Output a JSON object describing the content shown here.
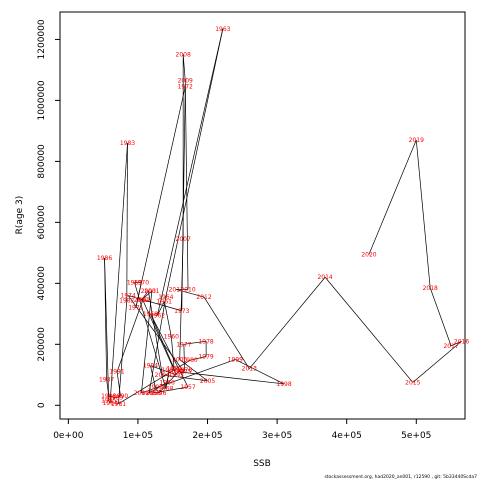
{
  "chart_data": {
    "type": "line",
    "xlabel": "SSB",
    "ylabel": "R(age 3)",
    "xlim": [
      -12000,
      570000
    ],
    "ylim": [
      -45000,
      1290000
    ],
    "x_ticks": [
      0,
      100000,
      200000,
      300000,
      400000,
      500000
    ],
    "x_tick_labels": [
      "0e+00",
      "1e+05",
      "2e+05",
      "3e+05",
      "4e+05",
      "5e+05"
    ],
    "y_ticks": [
      0,
      200000,
      400000,
      600000,
      800000,
      1000000,
      1200000
    ],
    "y_tick_labels": [
      "0",
      "200000",
      "400000",
      "600000",
      "800000",
      "1000000",
      "1200000"
    ],
    "grid": false,
    "line_color": "#000000",
    "label_color": "#ff0000",
    "points": [
      {
        "year": "1956",
        "x": 122000,
        "y": 40000
      },
      {
        "year": "1957",
        "x": 172000,
        "y": 60000
      },
      {
        "year": "1958",
        "x": 118000,
        "y": 300000
      },
      {
        "year": "1959",
        "x": 152000,
        "y": 120000
      },
      {
        "year": "1960",
        "x": 148000,
        "y": 225000
      },
      {
        "year": "1961",
        "x": 138000,
        "y": 340000
      },
      {
        "year": "1962",
        "x": 128000,
        "y": 295000
      },
      {
        "year": "1963",
        "x": 222000,
        "y": 1235000
      },
      {
        "year": "1964",
        "x": 140000,
        "y": 355000
      },
      {
        "year": "1965",
        "x": 116000,
        "y": 40000
      },
      {
        "year": "1966",
        "x": 142000,
        "y": 75000
      },
      {
        "year": "1967",
        "x": 145000,
        "y": 115000
      },
      {
        "year": "1968",
        "x": 140000,
        "y": 55000
      },
      {
        "year": "1969",
        "x": 95000,
        "y": 403000
      },
      {
        "year": "1970",
        "x": 105000,
        "y": 403000
      },
      {
        "year": "1971",
        "x": 97000,
        "y": 320000
      },
      {
        "year": "1972",
        "x": 168000,
        "y": 1045000
      },
      {
        "year": "1973",
        "x": 163000,
        "y": 310000
      },
      {
        "year": "1974",
        "x": 86000,
        "y": 360000
      },
      {
        "year": "1975",
        "x": 166000,
        "y": 110000
      },
      {
        "year": "1976",
        "x": 167000,
        "y": 115000
      },
      {
        "year": "1977",
        "x": 166000,
        "y": 200000
      },
      {
        "year": "1978",
        "x": 198000,
        "y": 210000
      },
      {
        "year": "1979",
        "x": 198000,
        "y": 160000
      },
      {
        "year": "1980",
        "x": 175000,
        "y": 148000
      },
      {
        "year": "1981",
        "x": 72000,
        "y": 5000
      },
      {
        "year": "1982",
        "x": 84000,
        "y": 343000
      },
      {
        "year": "1983",
        "x": 85000,
        "y": 860000
      },
      {
        "year": "1984",
        "x": 60000,
        "y": 8000
      },
      {
        "year": "1985",
        "x": 58000,
        "y": 15000
      },
      {
        "year": "1986",
        "x": 52000,
        "y": 483000
      },
      {
        "year": "1987",
        "x": 55000,
        "y": 85000
      },
      {
        "year": "1988",
        "x": 58000,
        "y": 30000
      },
      {
        "year": "1989",
        "x": 68000,
        "y": 25000
      },
      {
        "year": "1990",
        "x": 75000,
        "y": 30000
      },
      {
        "year": "1991",
        "x": 70000,
        "y": 110000
      },
      {
        "year": "1992",
        "x": 107000,
        "y": 345000
      },
      {
        "year": "1993",
        "x": 155000,
        "y": 100000
      },
      {
        "year": "1994",
        "x": 118000,
        "y": 130000
      },
      {
        "year": "1995",
        "x": 125000,
        "y": 60000
      },
      {
        "year": "1996",
        "x": 130000,
        "y": 40000
      },
      {
        "year": "1997",
        "x": 158000,
        "y": 110000
      },
      {
        "year": "1998",
        "x": 310000,
        "y": 70000
      },
      {
        "year": "1999",
        "x": 240000,
        "y": 150000
      },
      {
        "year": "2000",
        "x": 105000,
        "y": 40000
      },
      {
        "year": "2001",
        "x": 120000,
        "y": 375000
      },
      {
        "year": "2002",
        "x": 105000,
        "y": 345000
      },
      {
        "year": "2003",
        "x": 115000,
        "y": 375000
      },
      {
        "year": "2004",
        "x": 135000,
        "y": 100000
      },
      {
        "year": "2005",
        "x": 200000,
        "y": 80000
      },
      {
        "year": "2006",
        "x": 160000,
        "y": 150000
      },
      {
        "year": "2007",
        "x": 165000,
        "y": 545000
      },
      {
        "year": "2008",
        "x": 165000,
        "y": 1150000
      },
      {
        "year": "2009",
        "x": 168000,
        "y": 1065000
      },
      {
        "year": "2010",
        "x": 172000,
        "y": 380000
      },
      {
        "year": "2011",
        "x": 155000,
        "y": 380000
      },
      {
        "year": "2012",
        "x": 195000,
        "y": 355000
      },
      {
        "year": "2013",
        "x": 260000,
        "y": 120000
      },
      {
        "year": "2014",
        "x": 369000,
        "y": 420000
      },
      {
        "year": "2015",
        "x": 495000,
        "y": 75000
      },
      {
        "year": "2016",
        "x": 565000,
        "y": 210000
      },
      {
        "year": "2017",
        "x": 550000,
        "y": 195000
      },
      {
        "year": "2018",
        "x": 520000,
        "y": 385000
      },
      {
        "year": "2019",
        "x": 500000,
        "y": 870000
      },
      {
        "year": "2020",
        "x": 432000,
        "y": 495000
      }
    ],
    "path_order": [
      "1956",
      "1957",
      "1958",
      "1959",
      "1960",
      "1961",
      "1962",
      "1963",
      "1964",
      "1965",
      "1966",
      "1967",
      "1968",
      "1969",
      "1970",
      "1971",
      "1972",
      "1973",
      "1974",
      "1975",
      "1976",
      "1977",
      "1978",
      "1979",
      "1980",
      "1981",
      "1982",
      "1983",
      "1984",
      "1985",
      "1986",
      "1987",
      "1988",
      "1989",
      "1990",
      "1991",
      "1992",
      "1993",
      "1994",
      "1995",
      "1996",
      "1997",
      "1998",
      "1999",
      "2000",
      "2001",
      "2002",
      "2003",
      "2004",
      "2005",
      "2006",
      "2007",
      "2008",
      "2009",
      "2010",
      "2011",
      "2012",
      "2013",
      "2014",
      "2015",
      "2016",
      "2017",
      "2018",
      "2019",
      "2020"
    ]
  },
  "footer": {
    "note": "stockassessment.org, had2020_an001, r12590 , git: 5b33440Scda7"
  }
}
